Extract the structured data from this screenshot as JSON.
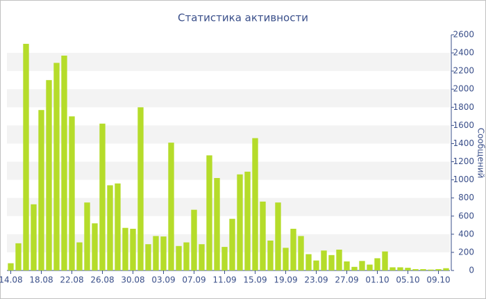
{
  "chart_data": {
    "type": "bar",
    "title": "Статистика активности",
    "y_label": "Сообщений",
    "categories": [
      "14.08",
      null,
      null,
      null,
      "18.08",
      null,
      null,
      null,
      "22.08",
      null,
      null,
      null,
      "26.08",
      null,
      null,
      null,
      "30.08",
      null,
      null,
      null,
      "03.09",
      null,
      null,
      null,
      "07.09",
      null,
      null,
      null,
      "11.09",
      null,
      null,
      null,
      "15.09",
      null,
      null,
      null,
      "19.09",
      null,
      null,
      null,
      "23.09",
      null,
      null,
      null,
      "27.09",
      null,
      null,
      null,
      "01.10",
      null,
      null,
      null,
      "05.10",
      null,
      null,
      null,
      "09.10",
      null
    ],
    "values": [
      80,
      300,
      2500,
      730,
      1770,
      2100,
      2290,
      2370,
      1700,
      310,
      750,
      520,
      1620,
      940,
      960,
      470,
      460,
      1800,
      290,
      380,
      375,
      1410,
      270,
      310,
      670,
      290,
      1270,
      1020,
      260,
      570,
      1060,
      1090,
      1460,
      760,
      330,
      750,
      250,
      460,
      380,
      180,
      110,
      220,
      170,
      230,
      100,
      40,
      105,
      65,
      135,
      210,
      35,
      35,
      30,
      15,
      15,
      10,
      15,
      25
    ],
    "color": "#b5dc2a",
    "ylim": [
      0,
      2600
    ],
    "yticks": [
      0,
      200,
      400,
      600,
      800,
      1000,
      1200,
      1400,
      1600,
      1800,
      2000,
      2200,
      2400,
      2600
    ],
    "grid": "bands",
    "y_axis_side": "right"
  }
}
